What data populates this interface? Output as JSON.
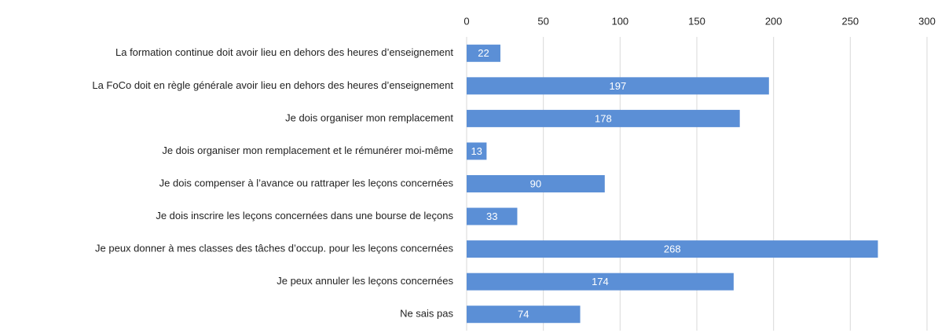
{
  "chart_data": {
    "type": "bar",
    "orientation": "horizontal",
    "categories": [
      "La formation continue doit avoir lieu en dehors des heures d’enseignement",
      "La FoCo doit en règle générale avoir lieu en dehors des heures d’enseignement",
      "Je dois organiser mon remplacement",
      "Je dois organiser mon remplacement et le rémunérer moi-même",
      "Je dois compenser à l’avance ou rattraper les leçons concernées",
      "Je dois inscrire les leçons concernées dans une bourse de leçons",
      "Je peux donner à mes classes des tâches d’occup. pour les leçons concernées",
      "Je peux annuler les leçons concernées",
      "Ne sais pas"
    ],
    "values": [
      22,
      197,
      178,
      13,
      90,
      33,
      268,
      174,
      74
    ],
    "color": "#5b8fd6",
    "xlim": [
      0,
      300
    ],
    "xticks": [
      0,
      50,
      100,
      150,
      200,
      250,
      300
    ],
    "grid": true
  }
}
